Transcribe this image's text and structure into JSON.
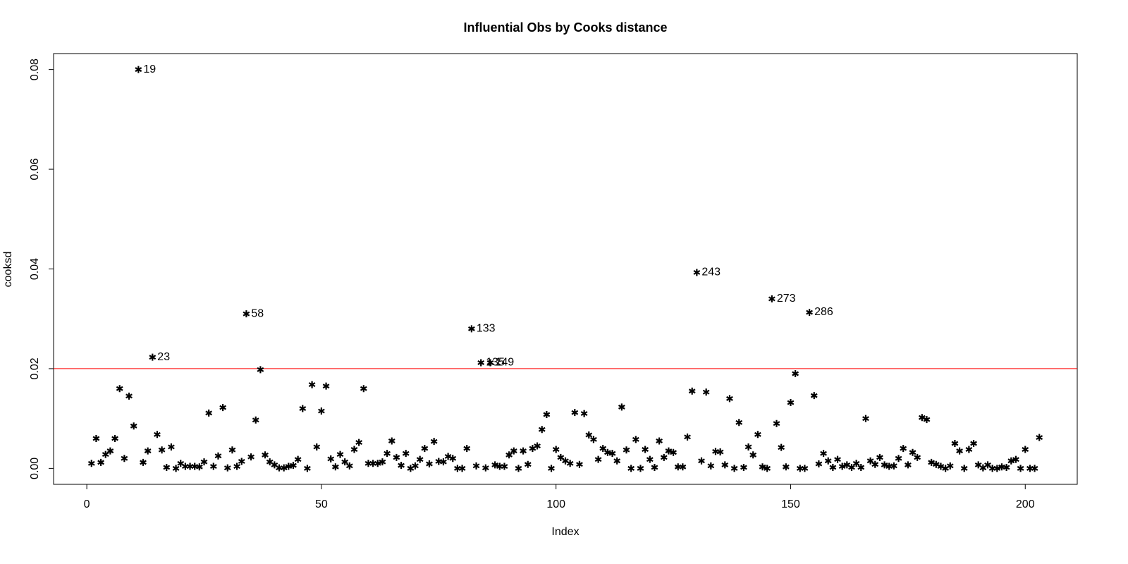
{
  "chart_data": {
    "type": "scatter",
    "title": "Influential Obs by Cooks distance",
    "x_label": "Index",
    "y_label": "cooksd",
    "xlim": [
      -7.08,
      211.08
    ],
    "ylim": [
      -0.0032,
      0.0832
    ],
    "xticks": [
      0,
      50,
      100,
      150,
      200
    ],
    "yticks": [
      {
        "value": 0,
        "label": "0.00"
      },
      0.02,
      0.04,
      0.06,
      0.08
    ],
    "color": "#000000",
    "label_color": "#ff0000",
    "hline": 0.02,
    "hline_color": "#ff0000",
    "x": [
      1,
      2,
      3,
      4,
      5,
      6,
      7,
      8,
      9,
      10,
      11,
      12,
      13,
      14,
      15,
      16,
      17,
      18,
      19,
      20,
      21,
      22,
      23,
      24,
      25,
      26,
      27,
      28,
      29,
      30,
      31,
      32,
      33,
      34,
      35,
      36,
      37,
      38,
      39,
      40,
      41,
      42,
      43,
      44,
      45,
      46,
      47,
      48,
      49,
      50,
      51,
      52,
      53,
      54,
      55,
      56,
      57,
      58,
      59,
      60,
      61,
      62,
      63,
      64,
      65,
      66,
      67,
      68,
      69,
      70,
      71,
      72,
      73,
      74,
      75,
      76,
      77,
      78,
      79,
      80,
      81,
      82,
      83,
      84,
      85,
      86,
      87,
      88,
      89,
      90,
      91,
      92,
      93,
      94,
      95,
      96,
      97,
      98,
      99,
      100,
      101,
      102,
      103,
      104,
      105,
      106,
      107,
      108,
      109,
      110,
      111,
      112,
      113,
      114,
      115,
      116,
      117,
      118,
      119,
      120,
      121,
      122,
      123,
      124,
      125,
      126,
      127,
      128,
      129,
      130,
      131,
      132,
      133,
      134,
      135,
      136,
      137,
      138,
      139,
      140,
      141,
      142,
      143,
      144,
      145,
      146,
      147,
      148,
      149,
      150,
      151,
      152,
      153,
      154,
      155,
      156,
      157,
      158,
      159,
      160,
      161,
      162,
      163,
      164,
      165,
      166,
      167,
      168,
      169,
      170,
      171,
      172,
      173,
      174,
      175,
      176,
      177,
      178,
      179,
      180,
      181,
      182,
      183,
      184,
      185,
      186,
      187,
      188,
      189,
      190,
      191,
      192,
      193,
      194,
      195,
      196,
      197,
      198,
      199,
      200,
      201,
      202,
      203
    ],
    "values": [
      0.001,
      0.006,
      0.0012,
      0.0028,
      0.0035,
      0.006,
      0.016,
      0.002,
      0.0145,
      0.0085,
      0.08,
      0.0012,
      0.0035,
      0.0223,
      0.0068,
      0.0037,
      0.0002,
      0.0043,
      0.0,
      0.001,
      0.0004,
      0.0004,
      0.0004,
      0.0003,
      0.0013,
      0.0111,
      0.0004,
      0.0025,
      0.0122,
      0.0001,
      0.0037,
      0.0004,
      0.0014,
      0.031,
      0.0023,
      0.0097,
      0.0198,
      0.0027,
      0.0013,
      0.0007,
      0.0001,
      0.0001,
      0.0004,
      0.0006,
      0.0018,
      0.012,
      0.0,
      0.0168,
      0.0043,
      0.0115,
      0.0165,
      0.0019,
      0.0003,
      0.0028,
      0.0013,
      0.0005,
      0.0038,
      0.0052,
      0.016,
      0.001,
      0.001,
      0.001,
      0.0013,
      0.003,
      0.0055,
      0.0022,
      0.0006,
      0.003,
      0.0,
      0.0005,
      0.0018,
      0.004,
      0.0009,
      0.0054,
      0.0014,
      0.0013,
      0.0024,
      0.002,
      0.0,
      0.0,
      0.004,
      0.028,
      0.0005,
      0.0212,
      0.0001,
      0.0212,
      0.0007,
      0.0004,
      0.0004,
      0.0027,
      0.0035,
      0.0,
      0.0035,
      0.0008,
      0.004,
      0.0045,
      0.0078,
      0.0108,
      0.0,
      0.0038,
      0.0022,
      0.0015,
      0.001,
      0.0112,
      0.0008,
      0.011,
      0.0067,
      0.0058,
      0.0018,
      0.004,
      0.0032,
      0.003,
      0.0015,
      0.0123,
      0.0037,
      0.0,
      0.0058,
      0.0,
      0.0038,
      0.0018,
      0.0002,
      0.0055,
      0.0022,
      0.0035,
      0.0032,
      0.0003,
      0.0003,
      0.0063,
      0.0155,
      0.0393,
      0.0015,
      0.0153,
      0.0005,
      0.0034,
      0.0033,
      0.0007,
      0.014,
      0.0,
      0.0092,
      0.0002,
      0.0043,
      0.0027,
      0.0068,
      0.0003,
      0.0,
      0.034,
      0.009,
      0.0042,
      0.0003,
      0.0132,
      0.019,
      0.0,
      0.0,
      0.0313,
      0.0146,
      0.0009,
      0.003,
      0.0015,
      0.0002,
      0.0018,
      0.0004,
      0.0007,
      0.0002,
      0.001,
      0.0002,
      0.01,
      0.0015,
      0.0008,
      0.0022,
      0.0007,
      0.0004,
      0.0005,
      0.002,
      0.004,
      0.0007,
      0.0032,
      0.0022,
      0.0102,
      0.0098,
      0.0012,
      0.0008,
      0.0004,
      0.0,
      0.0005,
      0.005,
      0.0035,
      0.0,
      0.0038,
      0.005,
      0.0007,
      0.0001,
      0.0007,
      0.0,
      0.0,
      0.0003,
      0.0002,
      0.0015,
      0.0018,
      0.0,
      0.0038,
      0.0,
      0.0,
      0.0062
    ],
    "point_labels": [
      null,
      null,
      null,
      null,
      null,
      null,
      null,
      null,
      null,
      null,
      "19",
      null,
      null,
      "23",
      null,
      null,
      null,
      null,
      null,
      null,
      null,
      null,
      null,
      null,
      null,
      null,
      null,
      null,
      null,
      null,
      null,
      null,
      null,
      "58",
      null,
      null,
      null,
      null,
      null,
      null,
      null,
      null,
      null,
      null,
      null,
      null,
      null,
      null,
      null,
      null,
      null,
      null,
      null,
      null,
      null,
      null,
      null,
      null,
      null,
      null,
      null,
      null,
      null,
      null,
      null,
      null,
      null,
      null,
      null,
      null,
      null,
      null,
      null,
      null,
      null,
      null,
      null,
      null,
      null,
      null,
      null,
      "133",
      null,
      "135",
      null,
      "149",
      null,
      null,
      null,
      null,
      null,
      null,
      null,
      null,
      null,
      null,
      null,
      null,
      null,
      null,
      null,
      null,
      null,
      null,
      null,
      null,
      null,
      null,
      null,
      null,
      null,
      null,
      null,
      null,
      null,
      null,
      null,
      null,
      null,
      null,
      null,
      null,
      null,
      null,
      null,
      null,
      null,
      null,
      null,
      "243",
      null,
      null,
      null,
      null,
      null,
      null,
      null,
      null,
      null,
      null,
      null,
      null,
      null,
      null,
      null,
      "273",
      null,
      null,
      null,
      null,
      null,
      null,
      null,
      "286",
      null,
      null,
      null,
      null,
      null,
      null,
      null,
      null,
      null,
      null,
      null,
      null,
      null,
      null,
      null,
      null,
      null,
      null,
      null,
      null,
      null,
      null,
      null,
      null,
      null,
      null,
      null,
      null,
      null,
      null,
      null,
      null,
      null,
      null,
      null,
      null,
      null,
      null,
      null,
      null,
      null,
      null,
      null,
      null,
      null,
      null,
      null,
      null,
      null
    ]
  }
}
